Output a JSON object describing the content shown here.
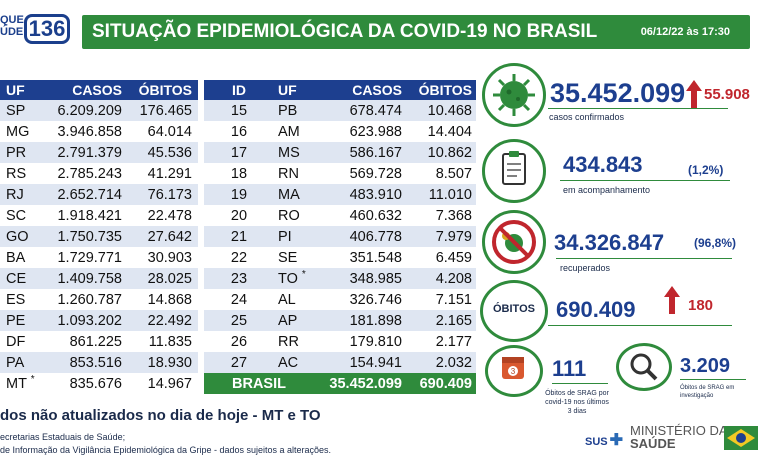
{
  "header": {
    "logo_prefix_1": "QUE",
    "logo_prefix_2": "ÚDE",
    "logo_number": "136",
    "title": "SITUAÇÃO EPIDEMIOLÓGICA DA COVID-19 NO BRASIL",
    "date": "06/12/22 às 17:30"
  },
  "table_left": {
    "headers": [
      "UF",
      "CASOS",
      "ÓBITOS"
    ],
    "rows": [
      {
        "uf": "SP",
        "casos": "6.209.209",
        "obitos": "176.465"
      },
      {
        "uf": "MG",
        "casos": "3.946.858",
        "obitos": "64.014"
      },
      {
        "uf": "PR",
        "casos": "2.791.379",
        "obitos": "45.536"
      },
      {
        "uf": "RS",
        "casos": "2.785.243",
        "obitos": "41.291"
      },
      {
        "uf": "RJ",
        "casos": "2.652.714",
        "obitos": "76.173"
      },
      {
        "uf": "SC",
        "casos": "1.918.421",
        "obitos": "22.478"
      },
      {
        "uf": "GO",
        "casos": "1.750.735",
        "obitos": "27.642"
      },
      {
        "uf": "BA",
        "casos": "1.729.771",
        "obitos": "30.903"
      },
      {
        "uf": "CE",
        "casos": "1.409.758",
        "obitos": "28.025"
      },
      {
        "uf": "ES",
        "casos": "1.260.787",
        "obitos": "14.868"
      },
      {
        "uf": "PE",
        "casos": "1.093.202",
        "obitos": "22.492"
      },
      {
        "uf": "DF",
        "casos": "861.225",
        "obitos": "11.835"
      },
      {
        "uf": "PA",
        "casos": "853.516",
        "obitos": "18.930"
      },
      {
        "uf": "MT",
        "mark": "*",
        "casos": "835.676",
        "obitos": "14.967"
      }
    ]
  },
  "table_right": {
    "headers": [
      "ID",
      "UF",
      "CASOS",
      "ÓBITOS"
    ],
    "rows": [
      {
        "id": "15",
        "uf": "PB",
        "casos": "678.474",
        "obitos": "10.468"
      },
      {
        "id": "16",
        "uf": "AM",
        "casos": "623.988",
        "obitos": "14.404"
      },
      {
        "id": "17",
        "uf": "MS",
        "casos": "586.167",
        "obitos": "10.862"
      },
      {
        "id": "18",
        "uf": "RN",
        "casos": "569.728",
        "obitos": "8.507"
      },
      {
        "id": "19",
        "uf": "MA",
        "casos": "483.910",
        "obitos": "11.010"
      },
      {
        "id": "20",
        "uf": "RO",
        "casos": "460.632",
        "obitos": "7.368"
      },
      {
        "id": "21",
        "uf": "PI",
        "casos": "406.778",
        "obitos": "7.979"
      },
      {
        "id": "22",
        "uf": "SE",
        "casos": "351.548",
        "obitos": "6.459"
      },
      {
        "id": "23",
        "uf": "TO",
        "mark": "*",
        "casos": "348.985",
        "obitos": "4.208"
      },
      {
        "id": "24",
        "uf": "AL",
        "casos": "326.746",
        "obitos": "7.151"
      },
      {
        "id": "25",
        "uf": "AP",
        "casos": "181.898",
        "obitos": "2.165"
      },
      {
        "id": "26",
        "uf": "RR",
        "casos": "179.810",
        "obitos": "2.177"
      },
      {
        "id": "27",
        "uf": "AC",
        "casos": "154.941",
        "obitos": "2.032"
      }
    ],
    "total": {
      "label": "BRASIL",
      "casos": "35.452.099",
      "obitos": "690.409"
    }
  },
  "footer": {
    "note": "dos não atualizados no dia de hoje - MT e TO",
    "source1": "ecretarias Estaduais de Saúde;",
    "source2": "de Informação da Vigilância Epidemiológica da Gripe - dados sujeitos a alterações."
  },
  "stats": {
    "confirmed": {
      "value": "35.452.099",
      "delta": "55.908",
      "label": "casos confirmados",
      "icon": "virus-icon"
    },
    "monitoring": {
      "value": "434.843",
      "pct": "(1,2%)",
      "label": "em acompanhamento",
      "icon": "clipboard-icon"
    },
    "recovered": {
      "value": "34.326.847",
      "pct": "(96,8%)",
      "label": "recuperados",
      "icon": "no-virus-icon"
    },
    "deaths": {
      "title": "ÓBITOS",
      "value": "690.409",
      "delta": "180"
    },
    "srag": {
      "value": "111",
      "label": "Óbitos de SRAG por covid-19 nos últimos 3 dias",
      "calendar_day": "3"
    },
    "investigation": {
      "value": "3.209",
      "label": "Óbitos de SRAG em investigação"
    }
  },
  "branding": {
    "sus": "SUS",
    "ministry_1": "MINISTÉRIO DA",
    "ministry_2": "SAÚDE"
  },
  "colors": {
    "green": "#2f8b3c",
    "blue": "#1d3f8f",
    "red": "#c0262d"
  }
}
